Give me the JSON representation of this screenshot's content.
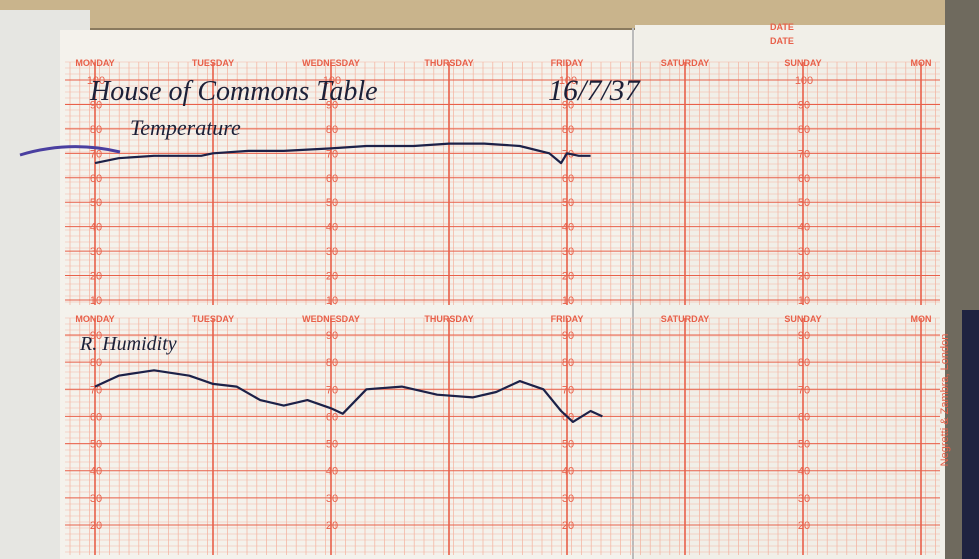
{
  "header": {
    "title": "House of Commons Table",
    "date": "16/7/37",
    "date_box": "DATE"
  },
  "days": [
    "MONDAY",
    "TUESDAY",
    "WEDNESDAY",
    "THURSDAY",
    "FRIDAY",
    "SATURDAY",
    "SUNDAY",
    "MON"
  ],
  "upper_chart": {
    "label": "Temperature",
    "scale": [
      100,
      90,
      80,
      70,
      60,
      50,
      40,
      30,
      20,
      10
    ],
    "trace": {
      "x": [
        0,
        0.2,
        0.5,
        0.9,
        1.0,
        1.3,
        1.6,
        2.0,
        2.3,
        2.7,
        3.0,
        3.3,
        3.6,
        3.85,
        3.95,
        4.0,
        4.1,
        4.2
      ],
      "values": [
        66,
        68,
        69,
        69,
        70,
        71,
        71,
        72,
        73,
        73,
        74,
        74,
        73,
        70,
        66,
        70,
        69,
        69
      ]
    }
  },
  "lower_chart": {
    "label": "R. Humidity",
    "scale": [
      90,
      80,
      70,
      60,
      50,
      40,
      30,
      20
    ],
    "trace": {
      "x": [
        0,
        0.2,
        0.5,
        0.8,
        1.0,
        1.2,
        1.4,
        1.6,
        1.8,
        2.0,
        2.1,
        2.3,
        2.6,
        2.9,
        3.2,
        3.4,
        3.6,
        3.8,
        3.95,
        4.05,
        4.2,
        4.3
      ],
      "values": [
        71,
        75,
        77,
        75,
        72,
        71,
        66,
        64,
        66,
        63,
        61,
        70,
        71,
        68,
        67,
        69,
        73,
        70,
        62,
        58,
        62,
        60
      ]
    }
  },
  "imprint": "Negretti & Zambra, London"
}
